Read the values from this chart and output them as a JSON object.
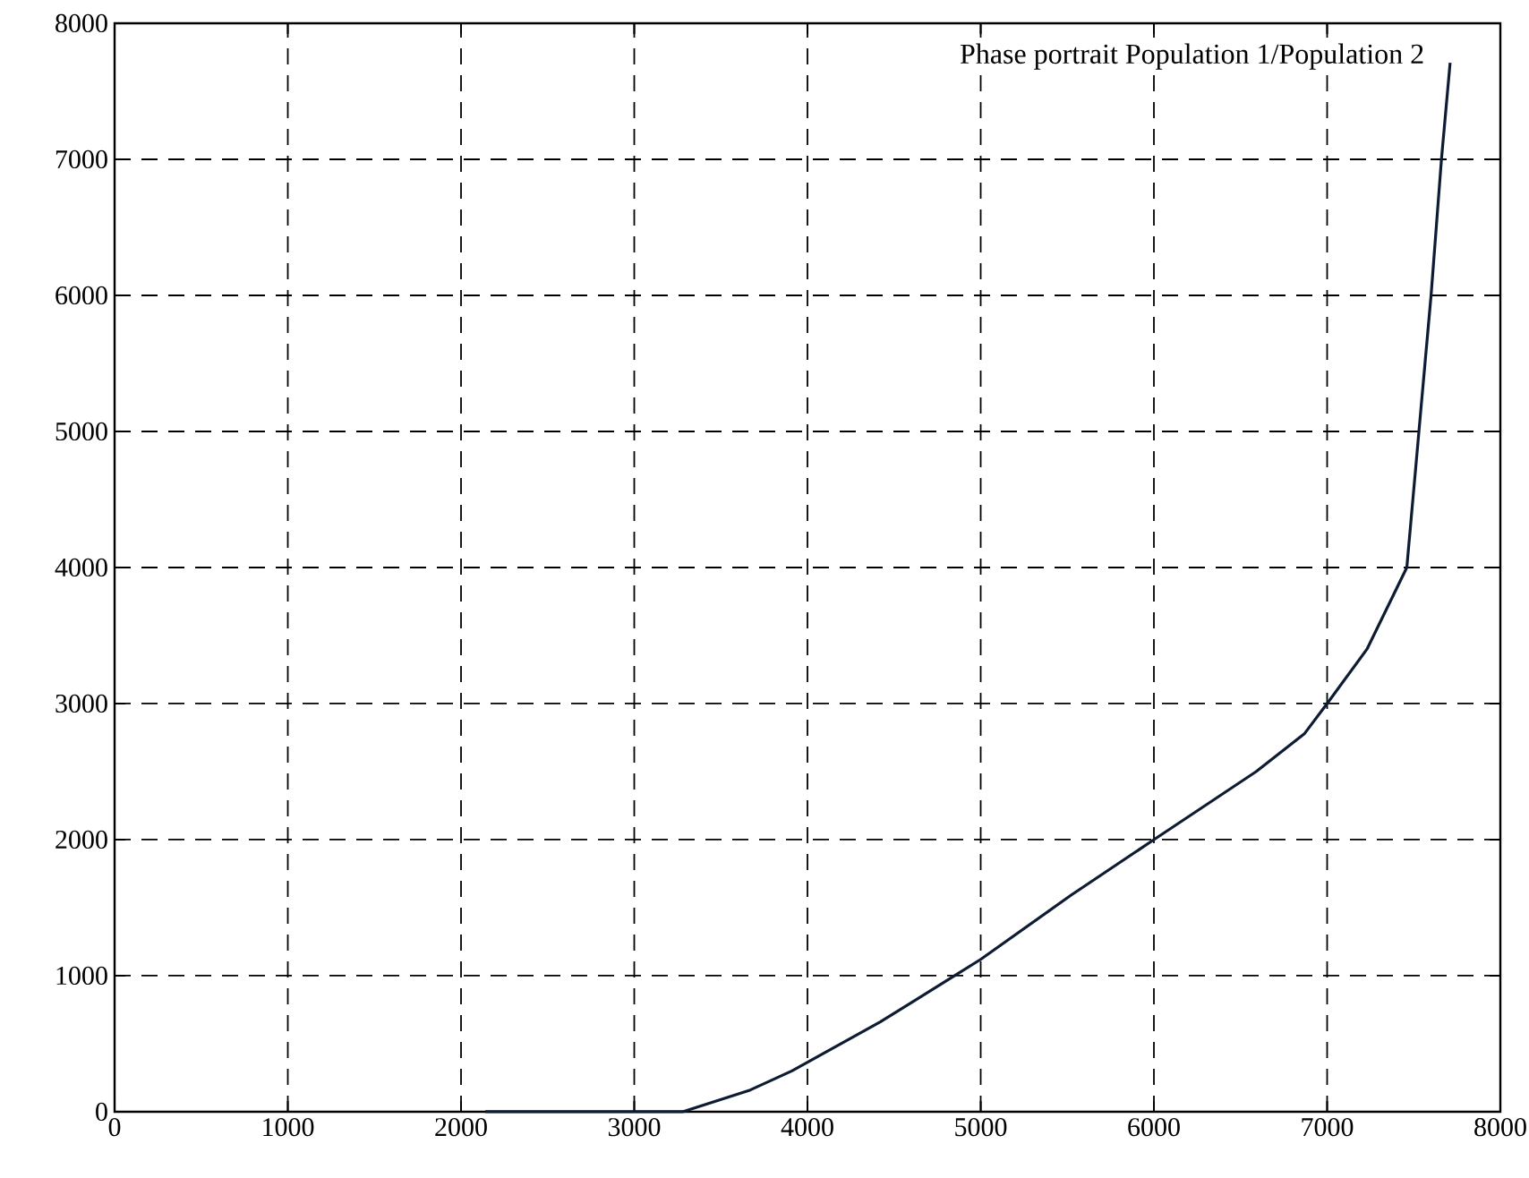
{
  "chart_data": {
    "type": "line",
    "annotations": [
      "Phase portrait Population 1/Population 2"
    ],
    "series": [
      {
        "color": "#0d1b33",
        "x": [
          2140,
          2560,
          3000,
          3280,
          3670,
          3910,
          4420,
          4850,
          5000,
          5520,
          6000,
          6590,
          6870,
          7000,
          7230,
          7460,
          7530,
          7600,
          7660,
          7710
        ],
        "values": [
          0,
          0,
          0,
          0,
          160,
          300,
          660,
          1000,
          1120,
          1590,
          2000,
          2500,
          2780,
          3000,
          3400,
          4000,
          5000,
          6000,
          7000,
          7710
        ]
      }
    ],
    "xlim": [
      0,
      8000
    ],
    "ylim": [
      0,
      8000
    ],
    "xticks": [
      0,
      1000,
      2000,
      3000,
      4000,
      5000,
      6000,
      7000,
      8000
    ],
    "yticks": [
      0,
      1000,
      2000,
      3000,
      4000,
      5000,
      6000,
      7000,
      8000
    ],
    "grid": true,
    "line_style": "solid",
    "marker": "none"
  }
}
